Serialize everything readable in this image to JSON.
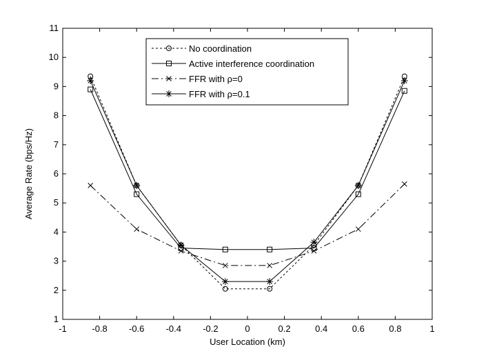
{
  "chart_data": {
    "type": "line",
    "title": "",
    "xlabel": "User Location (km)",
    "ylabel": "Average Rate (bps/Hz)",
    "xlim": [
      -1,
      1
    ],
    "ylim": [
      1,
      11
    ],
    "xticks": [
      -1,
      -0.8,
      -0.6,
      -0.4,
      -0.2,
      0,
      0.2,
      0.4,
      0.6,
      0.8,
      1
    ],
    "xtick_labels": [
      "-1",
      "-0.8",
      "-0.6",
      "-0.4",
      "-0.2",
      "0",
      "0.2",
      "0.4",
      "0.6",
      "0.8",
      "1"
    ],
    "yticks": [
      1,
      2,
      3,
      4,
      5,
      6,
      7,
      8,
      9,
      10,
      11
    ],
    "ytick_labels": [
      "1",
      "2",
      "3",
      "4",
      "5",
      "6",
      "7",
      "8",
      "9",
      "10",
      "11"
    ],
    "grid": false,
    "legend_position": "top-center",
    "x": [
      -0.85,
      -0.6,
      -0.36,
      -0.12,
      0.12,
      0.36,
      0.6,
      0.85
    ],
    "series": [
      {
        "name": "No coordination",
        "values": [
          9.35,
          5.6,
          3.55,
          2.05,
          2.05,
          3.55,
          5.6,
          9.35
        ],
        "marker": "circle",
        "dash": "dotted"
      },
      {
        "name": "Active interference coordination",
        "values": [
          8.9,
          5.3,
          3.45,
          3.4,
          3.4,
          3.45,
          5.3,
          8.85
        ],
        "marker": "square",
        "dash": "solid"
      },
      {
        "name": "FFR with ρ=0",
        "values": [
          5.6,
          4.1,
          3.35,
          2.85,
          2.85,
          3.35,
          4.1,
          5.65
        ],
        "marker": "x",
        "dash": "dashdot"
      },
      {
        "name": "FFR with ρ=0.1",
        "values": [
          9.2,
          5.6,
          3.55,
          2.3,
          2.3,
          3.65,
          5.6,
          9.2
        ],
        "marker": "star",
        "dash": "solid"
      }
    ]
  }
}
